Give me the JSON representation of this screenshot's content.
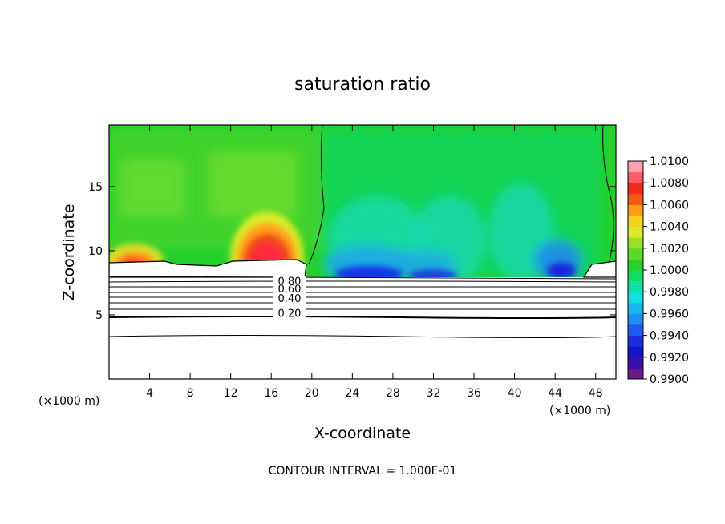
{
  "chart_data": {
    "type": "heatmap",
    "title": "saturation ratio",
    "xlabel": "X-coordinate",
    "ylabel": "Z-coordinate",
    "x_unit_left": "(×1000 m)",
    "x_unit_right": "(×1000 m)",
    "x_ticks": [
      "4",
      "8",
      "12",
      "16",
      "20",
      "24",
      "28",
      "32",
      "36",
      "40",
      "44",
      "48"
    ],
    "y_ticks": [
      "5",
      "10",
      "15"
    ],
    "xlim": [
      0,
      50
    ],
    "ylim": [
      0,
      19.8
    ],
    "colorbar": {
      "min": 0.99,
      "max": 1.01,
      "labels": [
        "1.0100",
        "1.0080",
        "1.0060",
        "1.0040",
        "1.0020",
        "1.0000",
        "0.9980",
        "0.9960",
        "0.9940",
        "0.9920",
        "0.9900"
      ]
    },
    "contour_labels": [
      {
        "text": "0.80",
        "x": 17.8,
        "z": 7.35
      },
      {
        "text": "0.60",
        "x": 17.8,
        "z": 6.75
      },
      {
        "text": "0.40",
        "x": 17.8,
        "z": 6.0
      },
      {
        "text": "0.20",
        "x": 17.8,
        "z": 4.85
      }
    ],
    "contour_interval": "CONTOUR INTERVAL = 1.000E-01"
  }
}
